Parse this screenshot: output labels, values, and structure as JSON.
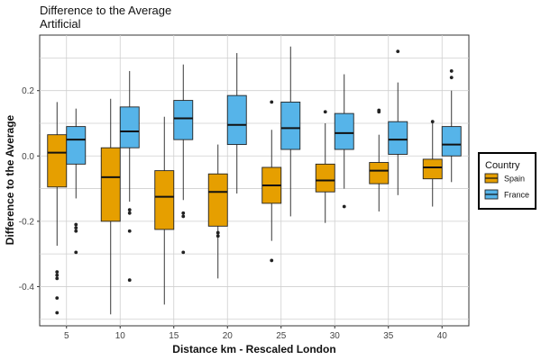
{
  "chart_data": {
    "type": "boxplot",
    "title": "Difference to the Average",
    "subtitle": "Artificial",
    "xlabel": "Distance km - Rescaled London",
    "ylabel": "Difference to the Average",
    "categories": [
      "5",
      "10",
      "15",
      "20",
      "25",
      "30",
      "35",
      "40"
    ],
    "ylim": [
      -0.52,
      0.37
    ],
    "yticks": [
      -0.4,
      -0.2,
      0.0,
      0.2
    ],
    "ytick_labels": [
      "-0.4",
      "-0.2",
      "0.0",
      "0.2"
    ],
    "grid": true,
    "legend": {
      "title": "Country",
      "position": "right"
    },
    "series": [
      {
        "name": "Spain",
        "color": "#E69F00",
        "boxes": [
          {
            "category": "5",
            "whisker_low": -0.275,
            "q1": -0.095,
            "median": 0.01,
            "q3": 0.065,
            "whisker_high": 0.165,
            "outliers": [
              -0.355,
              -0.365,
              -0.375,
              -0.435,
              -0.48
            ]
          },
          {
            "category": "10",
            "whisker_low": -0.485,
            "q1": -0.2,
            "median": -0.065,
            "q3": 0.025,
            "whisker_high": 0.175,
            "outliers": []
          },
          {
            "category": "15",
            "whisker_low": -0.455,
            "q1": -0.225,
            "median": -0.125,
            "q3": -0.045,
            "whisker_high": 0.12,
            "outliers": []
          },
          {
            "category": "20",
            "whisker_low": -0.375,
            "q1": -0.215,
            "median": -0.11,
            "q3": -0.055,
            "whisker_high": 0.035,
            "outliers": [
              -0.235,
              -0.245
            ]
          },
          {
            "category": "25",
            "whisker_low": -0.26,
            "q1": -0.145,
            "median": -0.09,
            "q3": -0.035,
            "whisker_high": 0.08,
            "outliers": [
              0.165,
              -0.32
            ]
          },
          {
            "category": "30",
            "whisker_low": -0.205,
            "q1": -0.11,
            "median": -0.075,
            "q3": -0.025,
            "whisker_high": 0.1,
            "outliers": [
              0.135
            ]
          },
          {
            "category": "35",
            "whisker_low": -0.17,
            "q1": -0.085,
            "median": -0.045,
            "q3": -0.02,
            "whisker_high": 0.065,
            "outliers": [
              0.135,
              0.14
            ]
          },
          {
            "category": "40",
            "whisker_low": -0.155,
            "q1": -0.07,
            "median": -0.035,
            "q3": -0.01,
            "whisker_high": 0.1,
            "outliers": [
              0.105
            ]
          }
        ]
      },
      {
        "name": "France",
        "color": "#56B4E9",
        "boxes": [
          {
            "category": "5",
            "whisker_low": -0.13,
            "q1": -0.025,
            "median": 0.05,
            "q3": 0.09,
            "whisker_high": 0.145,
            "outliers": [
              -0.21,
              -0.22,
              -0.23,
              -0.295
            ]
          },
          {
            "category": "10",
            "whisker_low": -0.14,
            "q1": 0.025,
            "median": 0.075,
            "q3": 0.15,
            "whisker_high": 0.26,
            "outliers": [
              -0.165,
              -0.175,
              -0.23,
              -0.38
            ]
          },
          {
            "category": "15",
            "whisker_low": -0.135,
            "q1": 0.05,
            "median": 0.115,
            "q3": 0.17,
            "whisker_high": 0.28,
            "outliers": [
              -0.175,
              -0.185,
              -0.295
            ]
          },
          {
            "category": "20",
            "whisker_low": -0.115,
            "q1": 0.035,
            "median": 0.095,
            "q3": 0.185,
            "whisker_high": 0.315,
            "outliers": []
          },
          {
            "category": "25",
            "whisker_low": -0.185,
            "q1": 0.02,
            "median": 0.085,
            "q3": 0.165,
            "whisker_high": 0.335,
            "outliers": []
          },
          {
            "category": "30",
            "whisker_low": -0.1,
            "q1": 0.02,
            "median": 0.07,
            "q3": 0.13,
            "whisker_high": 0.25,
            "outliers": [
              -0.155
            ]
          },
          {
            "category": "35",
            "whisker_low": -0.12,
            "q1": 0.005,
            "median": 0.05,
            "q3": 0.105,
            "whisker_high": 0.225,
            "outliers": [
              0.32
            ]
          },
          {
            "category": "40",
            "whisker_low": -0.08,
            "q1": 0.0,
            "median": 0.035,
            "q3": 0.09,
            "whisker_high": 0.2,
            "outliers": [
              0.26,
              0.24
            ]
          }
        ]
      }
    ]
  }
}
